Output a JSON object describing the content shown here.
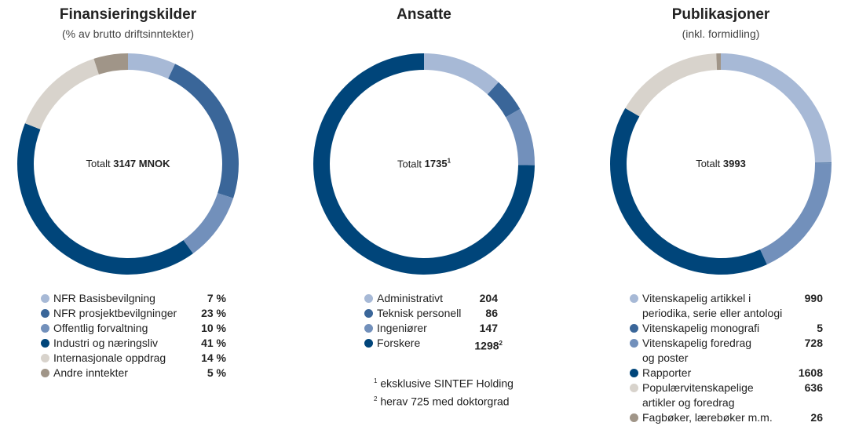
{
  "chart_data": [
    {
      "type": "pie",
      "title": "Finansieringskilder",
      "subtitle": "(% av brutto driftsinntekter)",
      "total_label": "Totalt",
      "total_value": "3147 MNOK",
      "unit": "%",
      "categories": [
        "NFR Basisbevilgning",
        "NFR prosjektbevilgninger",
        "Offentlig forvaltning",
        "Industri og næringsliv",
        "Internasjonale oppdrag",
        "Andre inntekter"
      ],
      "values": [
        7,
        23,
        10,
        41,
        14,
        5
      ],
      "value_labels": [
        "7 %",
        "23 %",
        "10 %",
        "41 %",
        "14 %",
        "5 %"
      ],
      "colors": [
        "#a7b9d6",
        "#3a6699",
        "#7290bb",
        "#00457a",
        "#d8d3cc",
        "#a09588"
      ]
    },
    {
      "type": "pie",
      "title": "Ansatte",
      "subtitle": "",
      "total_label": "Totalt",
      "total_value": "1735",
      "total_sup": "1",
      "categories": [
        "Administrativt",
        "Teknisk personell",
        "Ingeniører",
        "Forskere"
      ],
      "values": [
        204,
        86,
        147,
        1298
      ],
      "value_labels": [
        "204",
        "86",
        "147",
        "1298"
      ],
      "value_sups": [
        "",
        "",
        "",
        "2"
      ],
      "colors": [
        "#a7b9d6",
        "#3a6699",
        "#7290bb",
        "#00457a"
      ],
      "footnotes": [
        {
          "mark": "1",
          "text": "eksklusive SINTEF Holding"
        },
        {
          "mark": "2",
          "text": "herav 725 med doktorgrad"
        }
      ]
    },
    {
      "type": "pie",
      "title": "Publikasjoner",
      "subtitle": "(inkl. formidling)",
      "total_label": "Totalt",
      "total_value": "3993",
      "categories": [
        "Vitenskapelig artikkel i periodika, serie eller antologi",
        "Vitenskapelig monografi",
        "Vitenskapelig foredrag og poster",
        "Rapporter",
        "Populærvitenskapelige artikler og foredrag",
        "Fagbøker, lærebøker m.m."
      ],
      "category_lines": [
        [
          "Vitenskapelig artikkel i",
          "periodika, serie eller antologi"
        ],
        [
          "Vitenskapelig monografi"
        ],
        [
          "Vitenskapelig foredrag",
          "og poster"
        ],
        [
          "Rapporter"
        ],
        [
          "Populærvitenskapelige",
          "artikler og foredrag"
        ],
        [
          "Fagbøker, lærebøker m.m."
        ]
      ],
      "values": [
        990,
        5,
        728,
        1608,
        636,
        26
      ],
      "value_labels": [
        "990",
        "5",
        "728",
        "1608",
        "636",
        "26"
      ],
      "colors": [
        "#a7b9d6",
        "#3a6699",
        "#7290bb",
        "#00457a",
        "#d8d3cc",
        "#a09588"
      ]
    }
  ]
}
